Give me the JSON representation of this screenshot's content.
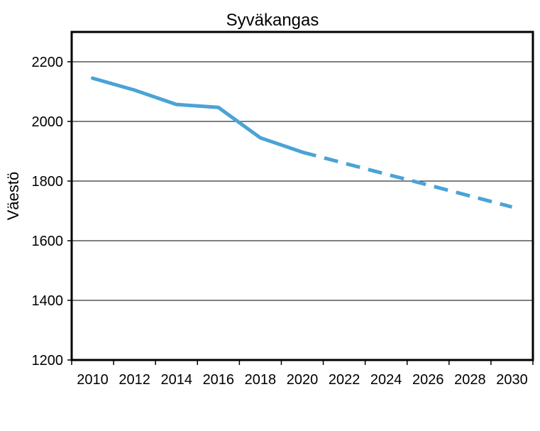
{
  "chart_data": {
    "type": "line",
    "title": "Syväkangas",
    "xlabel": "",
    "ylabel": "Väestö",
    "xlim": [
      2009,
      2031
    ],
    "ylim": [
      1200,
      2300
    ],
    "x_ticks": [
      "2010",
      "2012",
      "2014",
      "2016",
      "2018",
      "2020",
      "2022",
      "2024",
      "2026",
      "2028",
      "2030"
    ],
    "y_ticks": [
      "1200",
      "1400",
      "1600",
      "1800",
      "2000",
      "2200"
    ],
    "grid": "horizontal",
    "legend": "none",
    "series": [
      {
        "style": "solid",
        "color": "#4aa3d6",
        "x": [
          2010,
          2012,
          2014,
          2016,
          2018,
          2020
        ],
        "y": [
          2145,
          2105,
          2057,
          2047,
          1945,
          1897
        ]
      },
      {
        "style": "dashed",
        "color": "#4aa3d6",
        "x": [
          2020,
          2022,
          2024,
          2026,
          2028,
          2030
        ],
        "y": [
          1897,
          1860,
          1823,
          1787,
          1750,
          1713
        ]
      }
    ]
  }
}
